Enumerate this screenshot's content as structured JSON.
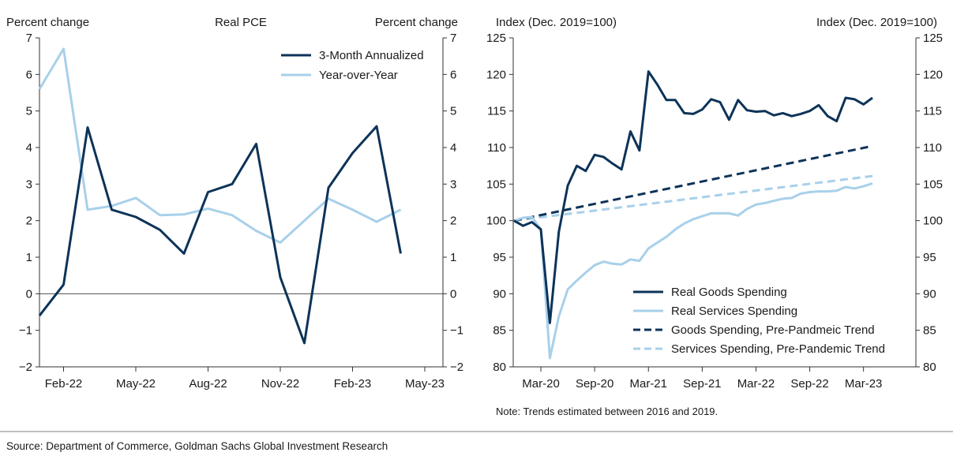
{
  "colors": {
    "dark": "#0d3358",
    "light": "#a8d0ea",
    "axis": "#333333"
  },
  "source": "Source: Department of Commerce, Goldman Sachs Global Investment Research",
  "chart_data": [
    {
      "type": "line",
      "title": "Real PCE",
      "ylabel_left": "Percent change",
      "ylabel_right": "Percent change",
      "ylim": [
        -2,
        7
      ],
      "yticks": [
        -2,
        -1,
        0,
        1,
        2,
        3,
        4,
        5,
        6,
        7
      ],
      "xticks": [
        "Feb-22",
        "May-22",
        "Aug-22",
        "Nov-22",
        "Feb-23",
        "May-23"
      ],
      "x": [
        "Jan-22",
        "Feb-22",
        "Mar-22",
        "Apr-22",
        "May-22",
        "Jun-22",
        "Jul-22",
        "Aug-22",
        "Sep-22",
        "Oct-22",
        "Nov-22",
        "Dec-22",
        "Jan-23",
        "Feb-23",
        "Mar-23",
        "Apr-23"
      ],
      "legend_position": "top-right",
      "series": [
        {
          "name": "3-Month Annualized",
          "style": "solid",
          "color": "dark",
          "values": [
            -0.6,
            0.25,
            4.55,
            2.3,
            2.1,
            1.75,
            1.1,
            2.78,
            3.0,
            4.1,
            0.45,
            -1.35,
            2.9,
            3.85,
            4.58,
            1.1
          ]
        },
        {
          "name": "Year-over-Year",
          "style": "solid",
          "color": "light",
          "values": [
            5.6,
            6.7,
            2.3,
            2.4,
            2.62,
            2.15,
            2.17,
            2.33,
            2.15,
            1.72,
            1.4,
            2.0,
            2.6,
            2.3,
            1.97,
            2.3
          ]
        }
      ]
    },
    {
      "type": "line",
      "ylabel_left": "Index (Dec. 2019=100)",
      "ylabel_right": "Index (Dec. 2019=100)",
      "ylim": [
        80,
        125
      ],
      "yticks": [
        80,
        85,
        90,
        95,
        100,
        105,
        110,
        115,
        120,
        125
      ],
      "xticks": [
        "Mar-20",
        "Sep-20",
        "Mar-21",
        "Sep-21",
        "Mar-22",
        "Sep-22",
        "Mar-23"
      ],
      "x_start": "Dec-19",
      "x_end": "Apr-23",
      "legend_position": "bottom-right",
      "note": "Note: Trends estimated between 2016 and 2019.",
      "series": [
        {
          "name": "Real Goods Spending",
          "style": "solid",
          "color": "dark",
          "values": [
            100,
            99.3,
            99.8,
            98.8,
            86.0,
            98.5,
            104.8,
            107.5,
            106.8,
            109.0,
            108.7,
            107.8,
            107.0,
            112.2,
            109.6,
            120.4,
            118.6,
            116.5,
            116.5,
            114.7,
            114.6,
            115.2,
            116.6,
            116.2,
            113.8,
            116.5,
            115.1,
            114.9,
            115.0,
            114.4,
            114.7,
            114.3,
            114.6,
            115.0,
            115.8,
            114.3,
            113.6,
            116.8,
            116.6,
            115.9,
            116.8
          ]
        },
        {
          "name": "Real Services Spending",
          "style": "solid",
          "color": "light",
          "values": [
            100,
            100.4,
            100.5,
            98.8,
            81.2,
            86.9,
            90.6,
            91.8,
            92.9,
            93.9,
            94.4,
            94.1,
            94.0,
            94.7,
            94.5,
            96.2,
            97.0,
            97.8,
            98.8,
            99.6,
            100.2,
            100.6,
            101.0,
            101.0,
            101.0,
            100.7,
            101.6,
            102.2,
            102.4,
            102.7,
            103.0,
            103.1,
            103.7,
            103.9,
            104.0,
            104.0,
            104.1,
            104.6,
            104.4,
            104.7,
            105.1
          ]
        },
        {
          "name": "Goods Spending, Pre-Pandmeic Trend",
          "style": "dashed",
          "color": "dark",
          "values": [
            100,
            110.2
          ]
        },
        {
          "name": "Services Spending, Pre-Pandemic Trend",
          "style": "dashed",
          "color": "light",
          "values": [
            100,
            106.1
          ]
        }
      ]
    }
  ]
}
